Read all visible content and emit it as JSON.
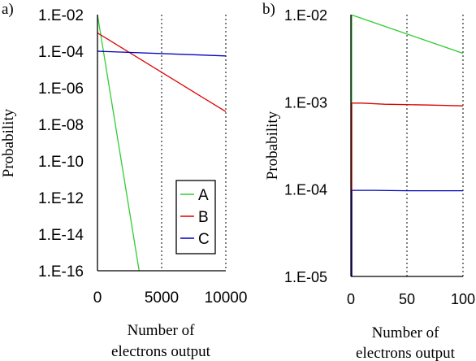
{
  "chart_data": [
    {
      "panel_label": "a)",
      "type": "line",
      "xlabel": [
        "Number of",
        "electrons output"
      ],
      "ylabel": "Probability",
      "yscale": "log",
      "xlim": [
        0,
        10000
      ],
      "ylim": [
        1e-16,
        0.01
      ],
      "x_ticks": [
        0,
        5000,
        10000
      ],
      "x_tick_labels": [
        "0",
        "5000",
        "10000"
      ],
      "y_ticks": [
        1e-16,
        1e-14,
        1e-12,
        1e-10,
        1e-08,
        1e-06,
        0.0001,
        0.01
      ],
      "y_tick_labels": [
        "1.E-16",
        "1.E-14",
        "1.E-12",
        "1.E-10",
        "1.E-08",
        "1.E-06",
        "1.E-04",
        "1.E-02"
      ],
      "grid": "vertical dotted",
      "legend": "inside, lower-right",
      "series": [
        {
          "name": "A",
          "color": "#33cc33",
          "x": [
            0,
            3250
          ],
          "y": [
            0.01,
            1e-16
          ]
        },
        {
          "name": "B",
          "color": "#dd0000",
          "x": [
            0,
            10000
          ],
          "y": [
            0.001,
            5e-08
          ]
        },
        {
          "name": "C",
          "color": "#0000bb",
          "x": [
            0,
            10000
          ],
          "y": [
            0.0001,
            5.5e-05
          ]
        }
      ]
    },
    {
      "panel_label": "b)",
      "type": "line",
      "xlabel": [
        "Number of",
        "electrons output"
      ],
      "ylabel": "Probability",
      "yscale": "log",
      "xlim": [
        0,
        100
      ],
      "ylim": [
        1e-05,
        0.01
      ],
      "x_ticks": [
        0,
        50,
        100
      ],
      "x_tick_labels": [
        "0",
        "50",
        "100"
      ],
      "y_ticks": [
        1e-05,
        0.0001,
        0.001,
        0.01
      ],
      "y_tick_labels": [
        "1.E-05",
        "1.E-04",
        "1.E-03",
        "1.E-02"
      ],
      "grid": "vertical dotted",
      "legend": "none",
      "series": [
        {
          "name": "A",
          "color": "#33cc33",
          "x": [
            0,
            100
          ],
          "y": [
            0.01,
            0.0036
          ]
        },
        {
          "name": "B",
          "color": "#dd0000",
          "x": [
            0,
            10,
            30,
            50,
            70,
            100
          ],
          "y": [
            0.00097,
            0.00097,
            0.00094,
            0.00093,
            0.00092,
            0.0009
          ]
        },
        {
          "name": "C",
          "color": "#0000bb",
          "x": [
            0,
            20,
            50,
            80,
            100
          ],
          "y": [
            9.7e-05,
            9.7e-05,
            9.6e-05,
            9.6e-05,
            9.6e-05
          ]
        }
      ]
    }
  ]
}
